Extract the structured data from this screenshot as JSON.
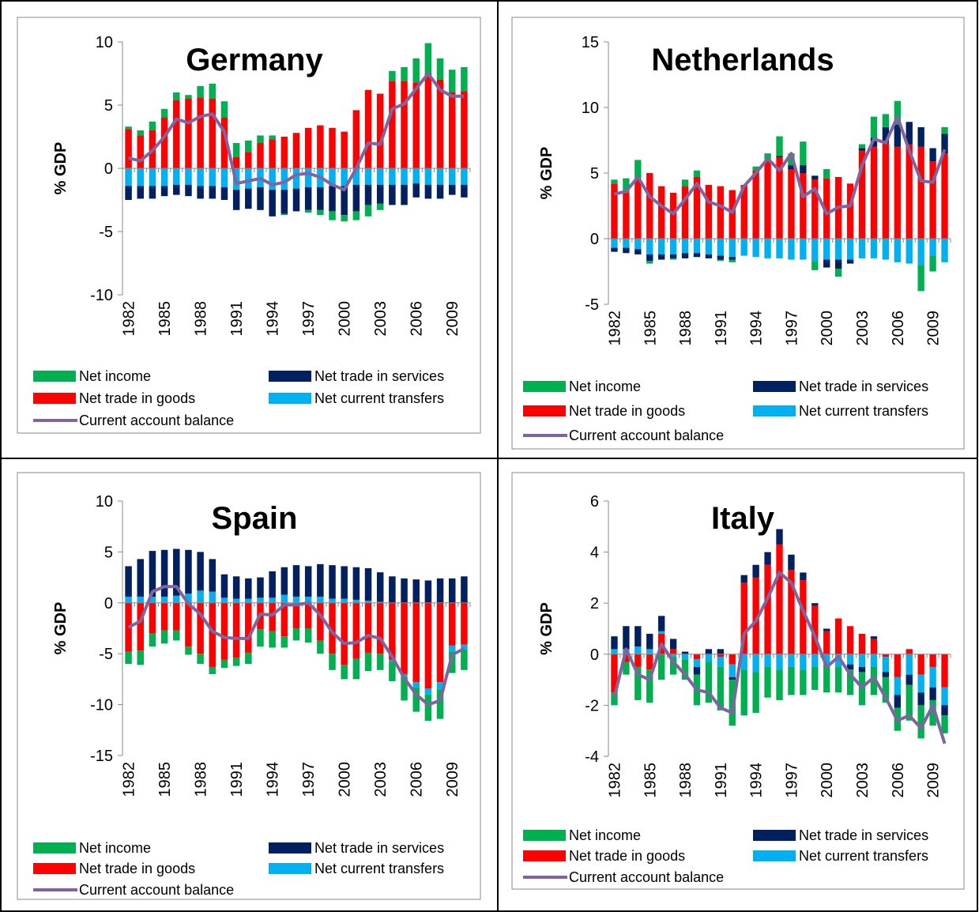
{
  "chart_data": [
    {
      "type": "bar",
      "stacked": true,
      "title": "Germany",
      "y_label": "% GDP",
      "ylim": [
        -10,
        10
      ],
      "yticks": [
        -10,
        -5,
        0,
        5,
        10
      ],
      "categories": [
        "1982",
        null,
        null,
        "1985",
        null,
        null,
        "1988",
        null,
        null,
        "1991",
        null,
        null,
        "1994",
        null,
        null,
        "1997",
        null,
        null,
        "2000",
        null,
        null,
        "2003",
        null,
        null,
        "2006",
        null,
        null,
        "2009",
        null
      ],
      "series": [
        {
          "name": "Net income",
          "color": "#00b050",
          "values": [
            0.2,
            0.4,
            0.7,
            0.7,
            0.6,
            0.3,
            0.9,
            1.2,
            1.3,
            1.1,
            0.9,
            0.6,
            0.3,
            -0.1,
            0.0,
            -0.2,
            -0.4,
            -0.7,
            -0.5,
            -0.7,
            -0.9,
            -0.5,
            0.8,
            1.1,
            1.9,
            2.4,
            1.7,
            1.8,
            1.9
          ]
        },
        {
          "name": "Net trade in services",
          "color": "#002060",
          "values": [
            -1.1,
            -1.0,
            -1.0,
            -0.8,
            -0.8,
            -0.9,
            -1.0,
            -1.0,
            -1.0,
            -1.6,
            -1.6,
            -1.8,
            -2.1,
            -1.9,
            -1.8,
            -1.8,
            -1.8,
            -2.0,
            -2.3,
            -2.1,
            -1.6,
            -1.5,
            -1.6,
            -1.6,
            -1.1,
            -1.1,
            -1.1,
            -0.8,
            -1.0
          ]
        },
        {
          "name": "Net trade in goods",
          "color": "#ff0000",
          "values": [
            3.1,
            2.6,
            3.0,
            4.0,
            5.4,
            5.5,
            5.6,
            5.5,
            4.0,
            0.9,
            1.3,
            2.0,
            2.3,
            2.5,
            2.8,
            3.2,
            3.4,
            3.2,
            2.9,
            4.6,
            6.2,
            5.9,
            6.9,
            6.9,
            6.8,
            7.5,
            7.0,
            6.0,
            6.1
          ]
        },
        {
          "name": "Net current transfers",
          "color": "#00b0f0",
          "values": [
            -1.4,
            -1.4,
            -1.4,
            -1.4,
            -1.3,
            -1.3,
            -1.4,
            -1.4,
            -1.5,
            -1.7,
            -1.6,
            -1.5,
            -1.7,
            -1.7,
            -1.6,
            -1.5,
            -1.5,
            -1.4,
            -1.4,
            -1.3,
            -1.3,
            -1.3,
            -1.3,
            -1.3,
            -1.2,
            -1.3,
            -1.3,
            -1.3,
            -1.3
          ]
        },
        {
          "name": "Current account balance",
          "type": "line",
          "color": "#8064a2",
          "values": [
            0.8,
            0.6,
            1.4,
            2.5,
            3.9,
            3.6,
            4.1,
            4.3,
            2.9,
            -1.2,
            -1.0,
            -0.8,
            -1.3,
            -1.1,
            -0.5,
            -0.4,
            -0.7,
            -1.3,
            -1.7,
            0.0,
            2.0,
            1.9,
            4.7,
            5.1,
            6.3,
            7.5,
            6.2,
            5.7,
            5.7
          ]
        }
      ]
    },
    {
      "type": "bar",
      "stacked": true,
      "title": "Netherlands",
      "y_label": "% GDP",
      "ylim": [
        -5,
        15
      ],
      "yticks": [
        -5,
        0,
        5,
        10,
        15
      ],
      "categories": [
        "1982",
        null,
        null,
        "1985",
        null,
        null,
        "1988",
        null,
        null,
        "1991",
        null,
        null,
        "1994",
        null,
        null,
        "1997",
        null,
        null,
        "2000",
        null,
        null,
        "2003",
        null,
        null,
        "2006",
        null,
        null,
        "2009",
        null
      ],
      "series": [
        {
          "name": "Net income",
          "color": "#00b050",
          "values": [
            0.3,
            1.1,
            1.5,
            -0.2,
            0.0,
            -0.1,
            0.5,
            0.5,
            0.0,
            -0.1,
            -0.2,
            0.0,
            0.3,
            0.5,
            1.5,
            0.9,
            1.8,
            -0.7,
            0.7,
            -0.6,
            0.0,
            0.3,
            1.6,
            1.0,
            1.8,
            0.0,
            -2.0,
            -1.2,
            0.5
          ]
        },
        {
          "name": "Net trade in services",
          "color": "#002060",
          "values": [
            -0.3,
            -0.4,
            -0.4,
            -0.5,
            -0.4,
            -0.3,
            -0.4,
            -0.3,
            -0.3,
            -0.3,
            -0.2,
            0.0,
            0.0,
            0.0,
            0.1,
            0.3,
            0.6,
            0.3,
            -0.6,
            -0.7,
            -0.3,
            0.2,
            0.7,
            1.2,
            1.7,
            1.7,
            1.5,
            1.0,
            1.5
          ]
        },
        {
          "name": "Net trade in goods",
          "color": "#ff0000",
          "values": [
            4.2,
            3.5,
            4.5,
            5.0,
            4.0,
            3.5,
            4.0,
            4.7,
            4.1,
            4.0,
            3.7,
            4.1,
            5.2,
            6.0,
            6.2,
            5.3,
            5.0,
            4.5,
            4.6,
            4.7,
            4.2,
            6.7,
            7.0,
            7.3,
            7.0,
            7.2,
            7.0,
            5.9,
            6.5
          ]
        },
        {
          "name": "Net current transfers",
          "color": "#00b0f0",
          "values": [
            -0.7,
            -0.7,
            -0.8,
            -1.2,
            -1.2,
            -1.2,
            -1.1,
            -1.1,
            -1.2,
            -1.3,
            -1.4,
            -1.3,
            -1.4,
            -1.5,
            -1.5,
            -1.6,
            -1.6,
            -1.7,
            -1.6,
            -1.6,
            -1.6,
            -1.5,
            -1.5,
            -1.6,
            -1.8,
            -1.9,
            -2.0,
            -1.3,
            -1.8
          ]
        },
        {
          "name": "Current account balance",
          "type": "line",
          "color": "#8064a2",
          "values": [
            3.4,
            3.6,
            4.7,
            3.2,
            2.5,
            1.9,
            3.0,
            4.2,
            2.8,
            2.5,
            2.0,
            4.0,
            5.0,
            6.1,
            5.2,
            6.5,
            3.2,
            3.8,
            1.9,
            2.4,
            2.5,
            5.6,
            7.6,
            7.3,
            9.3,
            6.7,
            4.4,
            4.3,
            6.8
          ]
        }
      ]
    },
    {
      "type": "bar",
      "stacked": true,
      "title": "Spain",
      "y_label": "% GDP",
      "ylim": [
        -15,
        10
      ],
      "yticks": [
        -15,
        -10,
        -5,
        0,
        5,
        10
      ],
      "categories": [
        "1982",
        null,
        null,
        "1985",
        null,
        null,
        "1988",
        null,
        null,
        "1991",
        null,
        null,
        "1994",
        null,
        null,
        "1997",
        null,
        null,
        "2000",
        null,
        null,
        "2003",
        null,
        null,
        "2006",
        null,
        null,
        "2009",
        null
      ],
      "series": [
        {
          "name": "Net income",
          "color": "#00b050",
          "values": [
            -1.2,
            -1.4,
            -1.3,
            -1.3,
            -1.0,
            -0.8,
            -1.0,
            -0.7,
            -0.8,
            -0.8,
            -1.1,
            -1.7,
            -1.6,
            -1.1,
            -1.2,
            -1.4,
            -1.3,
            -1.6,
            -1.4,
            -2.0,
            -1.8,
            -1.6,
            -1.9,
            -2.3,
            -2.4,
            -2.6,
            -2.9,
            -2.1,
            -2.0
          ]
        },
        {
          "name": "Net trade in services",
          "color": "#002060",
          "values": [
            3.0,
            3.7,
            4.5,
            4.6,
            4.6,
            4.3,
            3.8,
            3.2,
            2.3,
            2.2,
            2.0,
            2.0,
            2.6,
            2.7,
            3.1,
            3.0,
            3.2,
            3.3,
            3.2,
            3.2,
            3.2,
            2.9,
            2.6,
            2.4,
            2.3,
            2.2,
            2.4,
            2.4,
            2.6
          ]
        },
        {
          "name": "Net trade in goods",
          "color": "#ff0000",
          "values": [
            -4.8,
            -4.7,
            -3.0,
            -2.7,
            -2.7,
            -4.3,
            -5.0,
            -6.3,
            -5.6,
            -5.4,
            -4.9,
            -2.6,
            -2.8,
            -3.3,
            -2.5,
            -2.5,
            -3.7,
            -5.0,
            -6.1,
            -5.5,
            -4.9,
            -5.0,
            -5.6,
            -7.0,
            -7.8,
            -8.4,
            -7.8,
            -4.2,
            -4.1
          ]
        },
        {
          "name": "Net current transfers",
          "color": "#00b0f0",
          "values": [
            0.6,
            0.6,
            0.6,
            0.6,
            0.7,
            0.9,
            1.2,
            1.1,
            0.5,
            0.4,
            0.4,
            0.5,
            0.5,
            0.8,
            0.6,
            0.6,
            0.6,
            0.4,
            0.4,
            0.3,
            0.2,
            0.1,
            -0.2,
            -0.3,
            -0.5,
            -0.6,
            -0.7,
            -0.6,
            -0.5
          ]
        },
        {
          "name": "Current account balance",
          "type": "line",
          "color": "#8064a2",
          "values": [
            -2.4,
            -1.8,
            1.1,
            1.6,
            1.6,
            -0.1,
            -1.1,
            -2.8,
            -3.4,
            -3.5,
            -3.5,
            -1.1,
            -1.2,
            -0.2,
            -0.2,
            0.0,
            -1.2,
            -2.9,
            -4.0,
            -3.9,
            -3.2,
            -3.5,
            -5.3,
            -7.4,
            -9.0,
            -10.0,
            -9.6,
            -5.1,
            -4.5
          ]
        }
      ]
    },
    {
      "type": "bar",
      "stacked": true,
      "title": "Italy",
      "y_label": "% GDP",
      "ylim": [
        -4,
        6
      ],
      "yticks": [
        -4,
        -2,
        0,
        2,
        4,
        6
      ],
      "categories": [
        "1982",
        null,
        null,
        "1985",
        null,
        null,
        "1988",
        null,
        null,
        "1991",
        null,
        null,
        "1994",
        null,
        null,
        "1997",
        null,
        null,
        "2000",
        null,
        null,
        "2003",
        null,
        null,
        "2006",
        null,
        null,
        "2009",
        null
      ],
      "series": [
        {
          "name": "Net income",
          "color": "#00b050",
          "values": [
            -0.5,
            -0.5,
            -1.3,
            -1.3,
            -1.0,
            -0.7,
            -0.8,
            -1.2,
            -1.6,
            -1.7,
            -1.8,
            -1.8,
            -1.6,
            -1.2,
            -1.2,
            -1.1,
            -1.0,
            -0.9,
            -1.1,
            -1.0,
            -1.0,
            -1.3,
            -1.1,
            -1.0,
            -0.9,
            -1.4,
            -1.3,
            -1.0,
            -0.7
          ]
        },
        {
          "name": "Net trade in services",
          "color": "#002060",
          "values": [
            0.5,
            0.9,
            0.8,
            0.6,
            0.6,
            0.4,
            0.1,
            -0.3,
            0.2,
            0.2,
            -0.1,
            0.3,
            0.5,
            0.5,
            0.6,
            0.6,
            0.3,
            0.1,
            0.1,
            0.0,
            -0.2,
            -0.2,
            0.1,
            -0.2,
            -0.5,
            -0.4,
            -0.5,
            -0.5,
            -0.4
          ]
        },
        {
          "name": "Net trade in goods",
          "color": "#ff0000",
          "values": [
            -1.5,
            -0.3,
            -0.5,
            -0.6,
            0.8,
            0.2,
            0.0,
            -0.2,
            0.0,
            -0.1,
            -0.4,
            2.8,
            3.0,
            3.5,
            4.3,
            3.3,
            2.9,
            1.9,
            0.9,
            1.4,
            1.1,
            0.8,
            0.6,
            -0.1,
            -0.9,
            0.2,
            -0.8,
            -0.5,
            -1.3
          ]
        },
        {
          "name": "Net current transfers",
          "color": "#00b0f0",
          "values": [
            0.2,
            0.2,
            0.3,
            0.2,
            0.1,
            -0.1,
            -0.2,
            -0.3,
            -0.3,
            -0.4,
            -0.5,
            -0.6,
            -0.7,
            -0.5,
            -0.6,
            -0.5,
            -0.6,
            -0.5,
            -0.4,
            -0.5,
            -0.4,
            -0.5,
            -0.5,
            -0.6,
            -0.7,
            -0.8,
            -0.7,
            -0.8,
            -0.7
          ]
        },
        {
          "name": "Current account balance",
          "type": "line",
          "color": "#8064a2",
          "values": [
            -1.7,
            0.2,
            -0.8,
            -1.0,
            0.4,
            -0.3,
            -0.8,
            -1.4,
            -1.5,
            -2.1,
            -2.3,
            0.8,
            1.3,
            2.2,
            3.2,
            2.8,
            1.7,
            0.7,
            -0.5,
            -0.1,
            -0.8,
            -1.3,
            -0.9,
            -1.7,
            -2.6,
            -2.4,
            -2.9,
            -2.0,
            -3.5
          ]
        }
      ]
    }
  ]
}
